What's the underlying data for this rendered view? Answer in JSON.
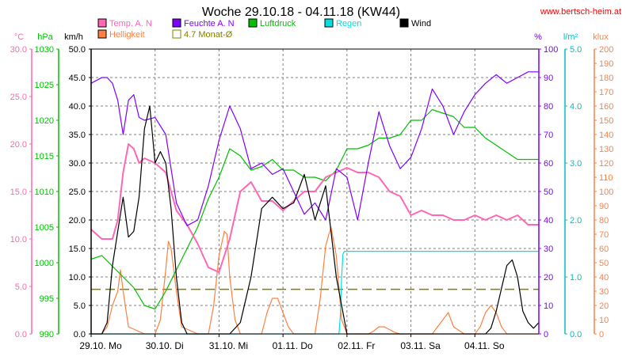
{
  "chart_data": {
    "type": "line",
    "title": "Woche 29.10.18 - 04.11.18 (KW44)",
    "source": "www.bertsch-heim.at",
    "x_labels": [
      "29.10.",
      "Mo",
      "30.10.",
      "Di",
      "31.10.",
      "Mi",
      "01.11.",
      "Do",
      "02.11.",
      "Fr",
      "03.11.",
      "Sa",
      "04.11.",
      "So"
    ],
    "x_days": [
      "29.10. Mo",
      "30.10. Di",
      "31.10. Mi",
      "01.11. Do",
      "02.11. Fr",
      "03.11. Sa",
      "04.11. So"
    ],
    "x_range_hours": [
      0,
      168
    ],
    "grid": true,
    "axes": {
      "temp": {
        "unit": "°C",
        "min": 0,
        "max": 30,
        "ticks": [
          0.0,
          5.0,
          10.0,
          15.0,
          20.0,
          25.0,
          30.0
        ],
        "color": "#ff66b3"
      },
      "pressure": {
        "unit": "hPa",
        "min": 990,
        "max": 1030,
        "ticks": [
          990,
          995,
          1000,
          1005,
          1010,
          1015,
          1020,
          1025,
          1030
        ],
        "color": "#00c000"
      },
      "wind": {
        "unit": "km/h",
        "min": 0,
        "max": 50,
        "ticks": [
          0.0,
          5.0,
          10.0,
          15.0,
          20.0,
          25.0,
          30.0,
          35.0,
          40.0,
          45.0,
          50.0
        ],
        "color": "#000000"
      },
      "humidity": {
        "unit": "%",
        "min": 0,
        "max": 100,
        "ticks": [
          0,
          10,
          20,
          30,
          40,
          50,
          60,
          70,
          80,
          90,
          100
        ],
        "color": "#8000ff"
      },
      "rain": {
        "unit": "l/m²",
        "min": 0,
        "max": 5,
        "ticks": [
          0.0,
          1.0,
          2.0,
          3.0,
          4.0,
          5.0
        ],
        "color": "#00c0c0"
      },
      "light": {
        "unit": "klux",
        "min": 0,
        "max": 200,
        "ticks": [
          0,
          10,
          20,
          30,
          40,
          50,
          60,
          70,
          80,
          90,
          100,
          110,
          120,
          130,
          140,
          150,
          160,
          170,
          180,
          190,
          200
        ],
        "color": "#ff8040"
      }
    },
    "legend": [
      {
        "label": "Temp. A. N",
        "color": "#ff66b3"
      },
      {
        "label": "Feuchte A. N",
        "color": "#8000ff"
      },
      {
        "label": "Luftdruck",
        "color": "#00c000"
      },
      {
        "label": "Regen",
        "color": "#00e0e0"
      },
      {
        "label": "Wind",
        "color": "#000000"
      },
      {
        "label": "Helligkeit",
        "color": "#ff8040"
      },
      {
        "label": "4.7 Monat-Ø",
        "color": "#808000"
      }
    ],
    "monthly_average_temp": 4.7,
    "series": [
      {
        "name": "Temp. A. N",
        "axis": "temp",
        "color": "#ff66b3",
        "x": [
          0,
          4,
          8,
          10,
          12,
          14,
          16,
          18,
          20,
          24,
          28,
          32,
          36,
          40,
          44,
          48,
          52,
          56,
          60,
          64,
          68,
          72,
          76,
          80,
          84,
          88,
          92,
          96,
          100,
          104,
          108,
          112,
          116,
          120,
          124,
          128,
          132,
          136,
          140,
          144,
          148,
          152,
          156,
          160,
          164,
          168
        ],
        "y": [
          11.0,
          10.0,
          10.0,
          12.0,
          17.0,
          20.0,
          19.5,
          18.0,
          18.5,
          18.0,
          17.0,
          13.0,
          11.5,
          9.5,
          7.0,
          6.5,
          10.0,
          15.0,
          16.0,
          14.0,
          14.0,
          13.0,
          14.0,
          15.0,
          15.0,
          16.5,
          17.0,
          17.5,
          17.0,
          17.0,
          16.5,
          15.0,
          14.5,
          12.5,
          13.0,
          12.5,
          12.5,
          12.0,
          12.0,
          12.5,
          12.0,
          12.5,
          12.0,
          12.5,
          11.5,
          11.5
        ]
      },
      {
        "name": "Feuchte A. N",
        "axis": "humidity",
        "color": "#8000ff",
        "x": [
          0,
          4,
          6,
          8,
          10,
          12,
          14,
          16,
          18,
          20,
          24,
          28,
          32,
          36,
          40,
          44,
          48,
          52,
          56,
          60,
          64,
          68,
          72,
          76,
          80,
          84,
          88,
          92,
          96,
          100,
          104,
          108,
          112,
          116,
          120,
          124,
          128,
          132,
          136,
          140,
          144,
          148,
          152,
          156,
          160,
          164,
          168
        ],
        "y": [
          88,
          90,
          90,
          88,
          82,
          70,
          82,
          84,
          76,
          75,
          76,
          70,
          46,
          38,
          40,
          52,
          68,
          80,
          72,
          58,
          60,
          56,
          58,
          50,
          42,
          46,
          40,
          58,
          55,
          40,
          60,
          78,
          66,
          58,
          62,
          72,
          86,
          80,
          70,
          78,
          84,
          88,
          91,
          88,
          90,
          92,
          92
        ]
      },
      {
        "name": "Luftdruck",
        "axis": "pressure",
        "color": "#00c000",
        "x": [
          0,
          4,
          8,
          12,
          16,
          20,
          24,
          28,
          32,
          36,
          40,
          44,
          48,
          52,
          56,
          60,
          64,
          68,
          72,
          76,
          80,
          84,
          88,
          92,
          96,
          100,
          104,
          108,
          112,
          116,
          120,
          124,
          128,
          132,
          136,
          140,
          144,
          148,
          152,
          156,
          160,
          164,
          168
        ],
        "y": [
          1000.5,
          1001.0,
          999.5,
          998.0,
          996.5,
          994.0,
          993.5,
          996.0,
          999.0,
          1002.0,
          1005.0,
          1009.0,
          1012.0,
          1016.0,
          1015.0,
          1013.0,
          1013.5,
          1014.5,
          1013.0,
          1013.0,
          1012.0,
          1012.0,
          1011.5,
          1013.0,
          1016.0,
          1016.0,
          1016.5,
          1017.5,
          1017.5,
          1018.0,
          1020.0,
          1020.0,
          1021.5,
          1021.0,
          1020.5,
          1019.0,
          1019.0,
          1017.5,
          1016.5,
          1015.5,
          1014.5,
          1014.5,
          1014.5
        ]
      },
      {
        "name": "Wind",
        "axis": "wind",
        "color": "#000000",
        "x": [
          0,
          4,
          6,
          8,
          10,
          12,
          14,
          16,
          18,
          20,
          22,
          24,
          26,
          28,
          30,
          32,
          34,
          36,
          38,
          40,
          44,
          48,
          52,
          56,
          60,
          64,
          68,
          72,
          76,
          80,
          84,
          88,
          90,
          92,
          96,
          100,
          104,
          108,
          112,
          116,
          120,
          124,
          128,
          132,
          136,
          140,
          144,
          148,
          150,
          152,
          154,
          156,
          158,
          160,
          162,
          164,
          166,
          168
        ],
        "y": [
          0,
          0,
          2,
          12,
          18,
          24,
          17,
          18,
          24,
          36,
          40,
          30,
          32,
          30,
          22,
          10,
          2,
          0,
          0,
          0,
          0,
          0,
          0,
          2,
          10,
          22,
          24,
          22,
          23,
          28,
          20,
          26,
          18,
          10,
          0,
          0,
          0,
          0,
          0,
          0,
          0,
          0,
          0,
          0,
          0,
          0,
          0,
          0,
          1,
          4,
          8,
          12,
          13,
          10,
          4,
          2,
          1,
          2
        ]
      },
      {
        "name": "Regen",
        "axis": "rain",
        "color": "#00e0e0",
        "x": [
          0,
          93,
          93.5,
          94,
          94.5,
          95,
          95.5,
          96,
          100,
          104,
          108,
          112,
          116,
          120,
          124,
          128,
          132,
          136,
          140,
          144,
          148,
          152,
          156,
          160,
          164,
          168
        ],
        "y": [
          0,
          0,
          0.3,
          1.0,
          1.4,
          1.45,
          1.45,
          1.45,
          1.45,
          1.45,
          1.45,
          1.45,
          1.45,
          1.45,
          1.45,
          1.45,
          1.45,
          1.45,
          1.45,
          1.45,
          1.45,
          1.45,
          1.45,
          1.45,
          1.45,
          1.45
        ]
      },
      {
        "name": "Helligkeit",
        "axis": "light",
        "color": "#ff8040",
        "x": [
          0,
          4,
          6,
          8,
          10,
          11,
          12,
          14,
          20,
          24,
          26,
          28,
          29,
          30,
          32,
          34,
          40,
          44,
          46,
          48,
          50,
          51,
          52,
          54,
          56,
          64,
          66,
          68,
          70,
          72,
          74,
          76,
          80,
          84,
          86,
          88,
          90,
          92,
          94,
          96,
          100,
          104,
          106,
          108,
          110,
          112,
          114,
          116,
          120,
          124,
          128,
          130,
          132,
          134,
          136,
          140,
          144,
          146,
          148,
          150,
          152,
          154,
          156,
          160,
          164,
          168
        ],
        "y": [
          0,
          0,
          5,
          20,
          30,
          45,
          30,
          5,
          0,
          0,
          10,
          45,
          65,
          60,
          30,
          5,
          0,
          0,
          20,
          55,
          72,
          70,
          40,
          10,
          0,
          0,
          15,
          25,
          25,
          15,
          5,
          0,
          0,
          0,
          25,
          62,
          75,
          55,
          10,
          0,
          0,
          0,
          2,
          5,
          5,
          3,
          1,
          0,
          0,
          0,
          0,
          5,
          10,
          15,
          5,
          0,
          0,
          5,
          15,
          20,
          15,
          5,
          0,
          0,
          0,
          0
        ]
      }
    ]
  }
}
